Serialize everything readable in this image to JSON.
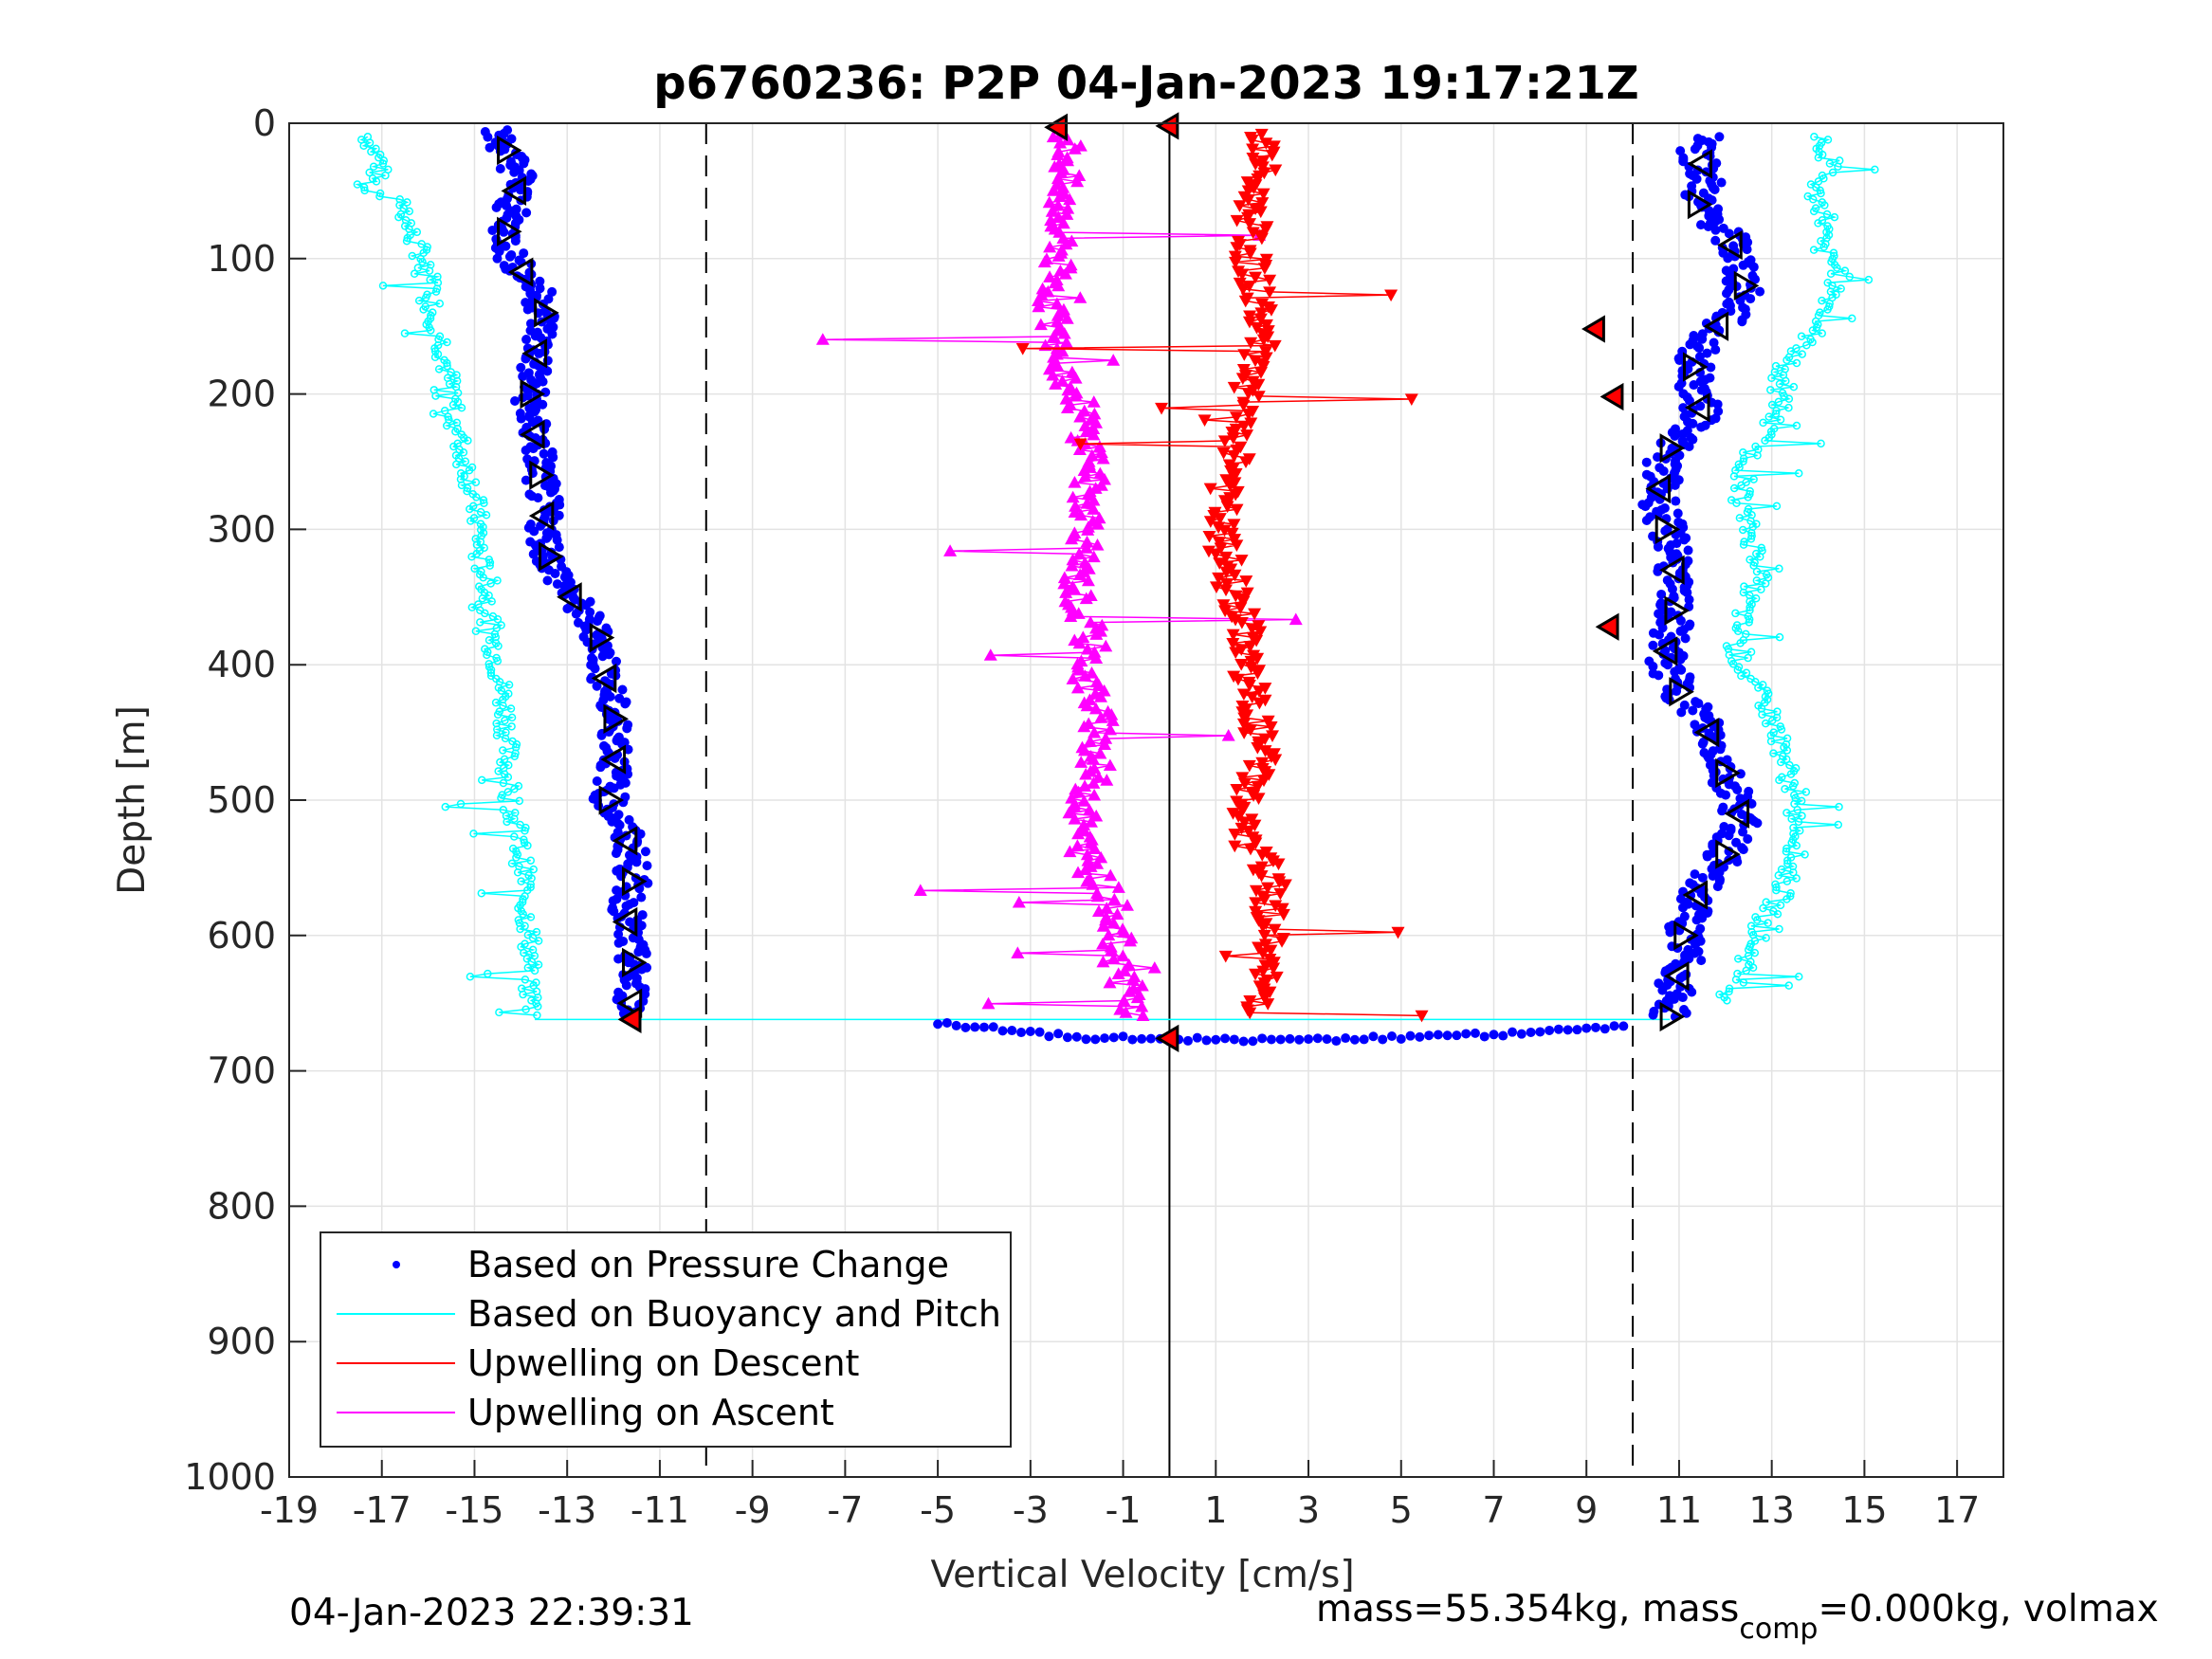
{
  "chart_data": {
    "type": "scatter",
    "title": "p6760236: P2P 04-Jan-2023 19:17:21Z",
    "xlabel": "Vertical Velocity [cm/s]",
    "ylabel": "Depth [m]",
    "xlim": [
      -19,
      18
    ],
    "ylim": [
      0,
      1000
    ],
    "y_reversed": true,
    "grid": true,
    "x_ticks": [
      -19,
      -17,
      -15,
      -13,
      -11,
      -9,
      -7,
      -5,
      -3,
      -1,
      1,
      3,
      5,
      7,
      9,
      11,
      13,
      15,
      17
    ],
    "x_tick_labels": [
      "-19",
      "-17",
      "-15",
      "-13",
      "-11",
      "-9",
      "-7",
      "-5",
      "-3",
      "-1",
      "1",
      "3",
      "5",
      "7",
      "9",
      "11",
      "13",
      "15",
      "17"
    ],
    "y_ticks": [
      0,
      100,
      200,
      300,
      400,
      500,
      600,
      700,
      800,
      900,
      1000
    ],
    "y_tick_labels": [
      "0",
      "100",
      "200",
      "300",
      "400",
      "500",
      "600",
      "700",
      "800",
      "900",
      "1000"
    ],
    "reference_lines": [
      {
        "x": -10,
        "style": "dashed"
      },
      {
        "x": 10,
        "style": "dashed"
      },
      {
        "x": 0,
        "style": "solid"
      }
    ],
    "legend_position": "bottom-left",
    "legend": [
      {
        "label": "Based on Pressure Change",
        "color": "#0000ff",
        "marker": "dot"
      },
      {
        "label": "Based on Buoyancy and Pitch",
        "color": "#00ffff",
        "marker": "line"
      },
      {
        "label": "Upwelling on Descent",
        "color": "#ff0000",
        "marker": "line"
      },
      {
        "label": "Upwelling on Ascent",
        "color": "#ff00ff",
        "marker": "line"
      }
    ],
    "series": [
      {
        "name": "Based on Pressure Change",
        "color": "#0000ff",
        "descent": {
          "depth": [
            5,
            20,
            40,
            60,
            80,
            100,
            120,
            140,
            160,
            180,
            200,
            220,
            240,
            260,
            280,
            300,
            320,
            340,
            360,
            380,
            400,
            420,
            440,
            460,
            480,
            500,
            520,
            540,
            560,
            580,
            600,
            620,
            640,
            660
          ],
          "velocity": [
            -14.6,
            -14.3,
            -14.0,
            -14.2,
            -14.3,
            -14.2,
            -13.7,
            -13.5,
            -13.6,
            -13.7,
            -13.8,
            -13.8,
            -13.6,
            -13.6,
            -13.5,
            -13.5,
            -13.4,
            -13.1,
            -12.7,
            -12.3,
            -12.2,
            -12.1,
            -12.0,
            -11.9,
            -12.0,
            -12.1,
            -11.8,
            -11.6,
            -11.6,
            -11.7,
            -11.7,
            -11.6,
            -11.6,
            -11.6
          ]
        },
        "ascent": {
          "depth": [
            10,
            20,
            40,
            60,
            80,
            100,
            120,
            140,
            160,
            180,
            200,
            220,
            240,
            260,
            280,
            300,
            320,
            340,
            360,
            380,
            400,
            420,
            440,
            460,
            480,
            500,
            520,
            540,
            560,
            580,
            600,
            620,
            640,
            660
          ],
          "velocity": [
            11.8,
            11.4,
            11.6,
            11.4,
            12.0,
            12.3,
            12.4,
            12.2,
            11.5,
            11.3,
            11.4,
            11.5,
            10.8,
            10.6,
            10.6,
            10.7,
            11.0,
            10.8,
            10.9,
            10.8,
            10.7,
            11.0,
            11.5,
            11.8,
            12.0,
            12.3,
            12.3,
            12.0,
            11.5,
            11.3,
            11.1,
            11.1,
            10.9,
            10.8
          ]
        },
        "turnaround": {
          "velocity": [
            -5.0,
            -4.0,
            -3.0,
            -2.0,
            -1.0,
            0.0,
            1.0,
            2.0,
            3.0,
            4.0,
            5.0,
            6.0,
            7.0,
            8.0,
            9.0,
            10.0
          ],
          "depth": [
            665,
            668,
            672,
            675,
            676,
            677,
            677,
            677,
            677,
            676,
            675,
            674,
            673,
            671,
            669,
            666
          ]
        }
      },
      {
        "name": "Based on Buoyancy and Pitch",
        "color": "#00ffff",
        "descent": {
          "depth": [
            10,
            30,
            50,
            60,
            80,
            100,
            120,
            140,
            160,
            180,
            200,
            220,
            240,
            260,
            280,
            300,
            320,
            340,
            360,
            380,
            400,
            420,
            440,
            460,
            480,
            500,
            520,
            540,
            560,
            580,
            600,
            620,
            640,
            660
          ],
          "velocity": [
            -17.3,
            -17.0,
            -17.3,
            -16.5,
            -16.4,
            -16.1,
            -15.9,
            -15.9,
            -15.7,
            -15.6,
            -15.5,
            -15.4,
            -15.3,
            -15.1,
            -15.0,
            -14.9,
            -14.9,
            -14.7,
            -14.7,
            -14.6,
            -14.5,
            -14.4,
            -14.3,
            -14.3,
            -14.3,
            -14.2,
            -14.1,
            -14.0,
            -13.9,
            -13.9,
            -13.8,
            -13.8,
            -13.8,
            -13.7
          ]
        },
        "ascent": {
          "depth": [
            10,
            30,
            50,
            70,
            90,
            110,
            130,
            150,
            170,
            190,
            210,
            230,
            250,
            270,
            290,
            310,
            330,
            350,
            370,
            390,
            410,
            430,
            450,
            470,
            490,
            510,
            530,
            550,
            570,
            590,
            610,
            630,
            650
          ],
          "velocity": [
            14.0,
            14.3,
            13.9,
            14.2,
            14.0,
            14.5,
            14.3,
            14.0,
            13.5,
            13.1,
            13.2,
            12.8,
            12.5,
            12.3,
            12.4,
            12.6,
            12.8,
            12.5,
            12.3,
            12.2,
            12.5,
            12.9,
            13.1,
            13.3,
            13.4,
            13.5,
            13.6,
            13.4,
            13.2,
            12.8,
            12.6,
            12.3,
            12.0
          ]
        }
      },
      {
        "name": "Upwelling on Descent",
        "color": "#ff0000",
        "depth": [
          10,
          30,
          50,
          70,
          90,
          110,
          130,
          150,
          170,
          190,
          210,
          230,
          250,
          270,
          290,
          310,
          330,
          350,
          370,
          390,
          410,
          430,
          450,
          470,
          490,
          510,
          530,
          550,
          570,
          590,
          610,
          630,
          650
        ],
        "velocity": [
          2.0,
          2.0,
          1.8,
          1.8,
          1.7,
          1.8,
          1.9,
          2.0,
          1.9,
          1.6,
          1.6,
          1.5,
          1.5,
          1.2,
          1.1,
          1.1,
          1.3,
          1.4,
          1.6,
          1.7,
          1.7,
          1.8,
          1.9,
          2.0,
          1.8,
          1.5,
          1.6,
          2.1,
          2.2,
          2.2,
          2.1,
          2.0,
          2.0
        ]
      },
      {
        "name": "Upwelling on Ascent",
        "color": "#ff00ff",
        "depth": [
          10,
          30,
          50,
          70,
          90,
          110,
          130,
          150,
          170,
          190,
          210,
          230,
          250,
          270,
          290,
          310,
          330,
          350,
          370,
          390,
          410,
          430,
          450,
          470,
          490,
          510,
          530,
          550,
          570,
          590,
          610,
          630,
          650
        ],
        "velocity": [
          -2.2,
          -2.2,
          -2.4,
          -2.3,
          -2.3,
          -2.5,
          -2.5,
          -2.5,
          -2.4,
          -2.2,
          -1.9,
          -1.8,
          -1.6,
          -1.8,
          -1.7,
          -1.8,
          -2.0,
          -2.0,
          -1.8,
          -1.7,
          -1.8,
          -1.6,
          -1.5,
          -1.6,
          -1.7,
          -1.9,
          -1.9,
          -1.7,
          -1.3,
          -1.1,
          -1.2,
          -1.0,
          -0.8
        ]
      }
    ],
    "annotations": [
      {
        "text": "04-Jan-2023 22:39:31",
        "position": "bottom-left"
      },
      {
        "text": "mass=55.354kg, mass",
        "subscript": "comp",
        "suffix": "=0.000kg, volmax",
        "position": "bottom-right"
      }
    ]
  }
}
